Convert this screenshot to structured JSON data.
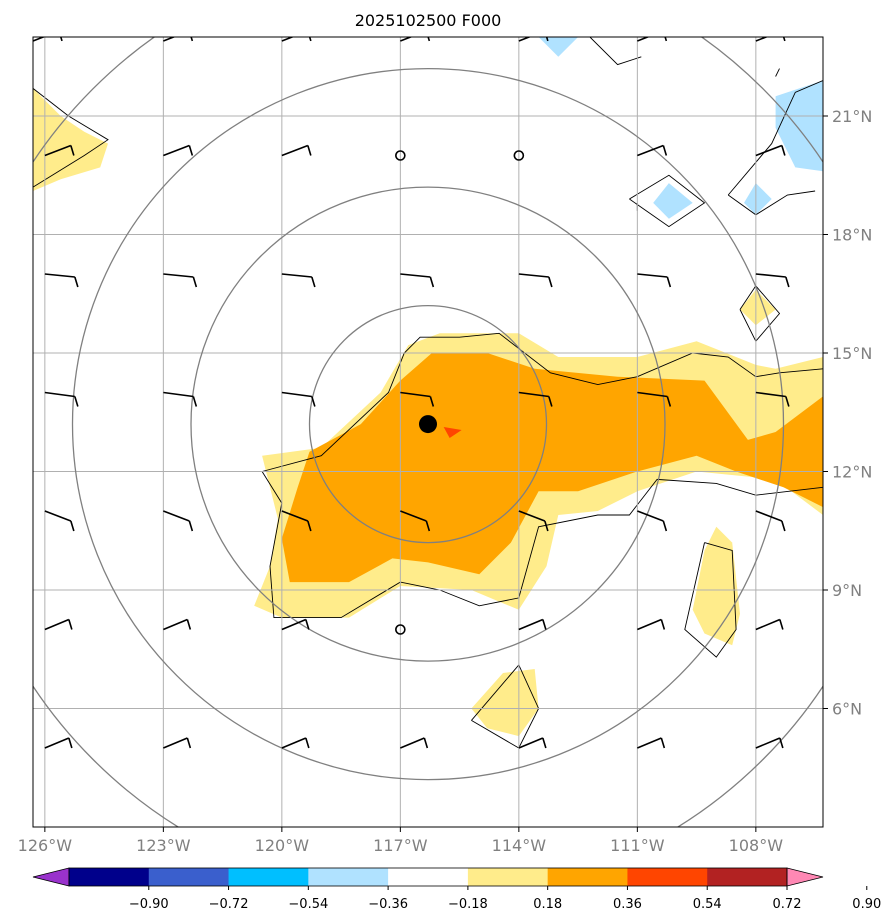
{
  "chart_data": {
    "type": "heatmap",
    "title": "2025102500 F000",
    "map": {
      "lon_range": [
        -126.3,
        -106.3
      ],
      "lat_range": [
        3,
        23
      ],
      "lon_ticks": [
        -126,
        -123,
        -120,
        -117,
        -114,
        -111,
        -108
      ],
      "lon_tick_labels": [
        "126°W",
        "123°W",
        "120°W",
        "117°W",
        "114°W",
        "111°W",
        "108°W"
      ],
      "lat_ticks": [
        6,
        9,
        12,
        15,
        18,
        21
      ],
      "lat_tick_labels": [
        "6°N",
        "9°N",
        "12°N",
        "15°N",
        "18°N",
        "21°N"
      ],
      "grid": true,
      "center_marker": {
        "lon": -116.3,
        "lat": 13.2
      },
      "motion_marker": {
        "lon": -115.6,
        "lat": 13.0,
        "color": "#ff4500"
      },
      "range_rings_deg": [
        3,
        6,
        9,
        12
      ]
    },
    "colorbar": {
      "levels": [
        -0.9,
        -0.72,
        -0.54,
        -0.36,
        -0.18,
        0.18,
        0.36,
        0.54,
        0.72,
        0.9
      ],
      "labels": [
        "−0.90",
        "−0.72",
        "−0.54",
        "−0.36",
        "−0.18",
        "0.18",
        "0.36",
        "0.54",
        "0.72",
        "0.90"
      ],
      "colors": [
        "#9932cc",
        "#00008b",
        "#3a5fcd",
        "#00bfff",
        "#b0e2ff",
        "#ffffff",
        "#ffec8b",
        "#ffa500",
        "#ff4500",
        "#b22222",
        "#ff88b4"
      ],
      "extend": "both"
    },
    "filled_regions": [
      {
        "level": "0.18-0.36",
        "color": "#ffec8b",
        "points": [
          [
            -120.5,
            12.4
          ],
          [
            -119,
            12.6
          ],
          [
            -117.5,
            14.0
          ],
          [
            -116.8,
            15.2
          ],
          [
            -116,
            15.5
          ],
          [
            -114,
            15.5
          ],
          [
            -113,
            14.9
          ],
          [
            -111,
            14.9
          ],
          [
            -109.5,
            15.3
          ],
          [
            -108,
            14.7
          ],
          [
            -107.5,
            14.6
          ],
          [
            -106.3,
            14.9
          ],
          [
            -106.3,
            10.9
          ],
          [
            -107.5,
            11.8
          ],
          [
            -109.5,
            12.0
          ],
          [
            -111,
            11.5
          ],
          [
            -112,
            11.0
          ],
          [
            -113,
            10.9
          ],
          [
            -113.3,
            9.6
          ],
          [
            -114.0,
            8.5
          ],
          [
            -115.2,
            9.0
          ],
          [
            -117,
            9.1
          ],
          [
            -118.3,
            8.3
          ],
          [
            -120,
            8.3
          ],
          [
            -120.7,
            8.6
          ],
          [
            -120.3,
            9.6
          ],
          [
            -120.1,
            10.8
          ],
          [
            -120.5,
            12.4
          ]
        ]
      },
      {
        "level": "0.36-0.54",
        "color": "#ffa500",
        "points": [
          [
            -119.3,
            12.5
          ],
          [
            -118,
            13.2
          ],
          [
            -117,
            14.3
          ],
          [
            -116.2,
            15.0
          ],
          [
            -114.8,
            15.0
          ],
          [
            -113.6,
            14.6
          ],
          [
            -111.5,
            14.4
          ],
          [
            -109.3,
            14.3
          ],
          [
            -108.2,
            12.8
          ],
          [
            -107.5,
            13.0
          ],
          [
            -106.3,
            13.9
          ],
          [
            -106.3,
            11.1
          ],
          [
            -107.3,
            11.6
          ],
          [
            -108.5,
            12.0
          ],
          [
            -109.5,
            12.4
          ],
          [
            -111,
            12.0
          ],
          [
            -112.5,
            11.5
          ],
          [
            -113.5,
            11.5
          ],
          [
            -114.2,
            10.2
          ],
          [
            -115,
            9.4
          ],
          [
            -116.3,
            9.7
          ],
          [
            -117.2,
            9.8
          ],
          [
            -118.3,
            9.2
          ],
          [
            -119.8,
            9.2
          ],
          [
            -120.0,
            10.3
          ],
          [
            -119.6,
            11.6
          ],
          [
            -119.3,
            12.5
          ]
        ]
      },
      {
        "level": "0.18-0.36",
        "color": "#ffec8b",
        "points": [
          [
            -126.3,
            21.7
          ],
          [
            -125.6,
            21.0
          ],
          [
            -125.0,
            20.6
          ],
          [
            -124.4,
            20.3
          ],
          [
            -124.6,
            19.7
          ],
          [
            -125.6,
            19.4
          ],
          [
            -126.3,
            19.1
          ]
        ]
      },
      {
        "level": "0.18-0.36",
        "color": "#ffec8b",
        "points": [
          [
            -108.4,
            16.1
          ],
          [
            -108.0,
            16.6
          ],
          [
            -107.5,
            16.1
          ],
          [
            -108.0,
            15.7
          ]
        ]
      },
      {
        "level": "0.18-0.36",
        "color": "#ffec8b",
        "points": [
          [
            -109.3,
            10.0
          ],
          [
            -109.0,
            10.6
          ],
          [
            -108.6,
            10.2
          ],
          [
            -108.4,
            8.4
          ],
          [
            -108.6,
            7.6
          ],
          [
            -109.3,
            7.9
          ],
          [
            -109.6,
            8.5
          ]
        ]
      },
      {
        "level": "0.18-0.36",
        "color": "#ffec8b",
        "points": [
          [
            -115.2,
            6.0
          ],
          [
            -114.4,
            6.9
          ],
          [
            -113.6,
            7.0
          ],
          [
            -113.5,
            6.0
          ],
          [
            -114.0,
            5.3
          ],
          [
            -114.8,
            5.5
          ]
        ]
      },
      {
        "level": "-0.36--0.18",
        "color": "#b0e2ff",
        "points": [
          [
            -113.5,
            23.0
          ],
          [
            -112.5,
            23.0
          ],
          [
            -113.0,
            22.5
          ]
        ]
      },
      {
        "level": "-0.36--0.18",
        "color": "#b0e2ff",
        "points": [
          [
            -107.5,
            21.5
          ],
          [
            -106.3,
            21.9
          ],
          [
            -106.3,
            19.6
          ],
          [
            -107.0,
            19.7
          ],
          [
            -107.5,
            20.7
          ]
        ]
      },
      {
        "level": "-0.36--0.18",
        "color": "#b0e2ff",
        "points": [
          [
            -110.6,
            18.8
          ],
          [
            -110.2,
            19.3
          ],
          [
            -109.6,
            18.8
          ],
          [
            -110.2,
            18.4
          ]
        ]
      },
      {
        "level": "-0.36--0.18",
        "color": "#b0e2ff",
        "points": [
          [
            -108.3,
            18.8
          ],
          [
            -108.0,
            19.3
          ],
          [
            -107.6,
            18.9
          ],
          [
            -108.0,
            18.5
          ]
        ]
      }
    ],
    "contours": [
      [
        [
          -120.5,
          12.0
        ],
        [
          -119.0,
          12.4
        ],
        [
          -117.3,
          14.0
        ],
        [
          -116.9,
          15.0
        ],
        [
          -116.5,
          15.4
        ],
        [
          -115.5,
          15.4
        ],
        [
          -114.5,
          15.5
        ],
        [
          -113.2,
          14.5
        ],
        [
          -112,
          14.2
        ],
        [
          -111,
          14.4
        ],
        [
          -109.6,
          15.0
        ],
        [
          -108.7,
          14.9
        ],
        [
          -108.0,
          14.4
        ],
        [
          -107.4,
          14.5
        ],
        [
          -106.3,
          14.6
        ]
      ],
      [
        [
          -120.5,
          12.0
        ],
        [
          -120.0,
          11.2
        ],
        [
          -120.3,
          9.6
        ],
        [
          -120.2,
          8.3
        ],
        [
          -118.5,
          8.3
        ],
        [
          -117.0,
          9.2
        ],
        [
          -116.0,
          9.0
        ],
        [
          -115.0,
          8.6
        ],
        [
          -114.0,
          8.8
        ],
        [
          -113.5,
          10.6
        ],
        [
          -112.0,
          10.9
        ],
        [
          -111.2,
          10.9
        ],
        [
          -110.5,
          11.8
        ],
        [
          -109.0,
          11.7
        ],
        [
          -108.0,
          11.4
        ],
        [
          -106.3,
          11.6
        ]
      ],
      [
        [
          -126.3,
          21.7
        ],
        [
          -125.4,
          21.0
        ],
        [
          -124.4,
          20.4
        ],
        [
          -125.0,
          20.0
        ],
        [
          -126.3,
          19.2
        ]
      ],
      [
        [
          -108.4,
          16.1
        ],
        [
          -108.0,
          16.7
        ],
        [
          -107.4,
          16.0
        ],
        [
          -108.0,
          15.3
        ],
        [
          -108.4,
          16.1
        ]
      ],
      [
        [
          -109.3,
          10.2
        ],
        [
          -108.6,
          10.0
        ],
        [
          -108.5,
          8.0
        ],
        [
          -109.0,
          7.3
        ],
        [
          -109.8,
          8.0
        ],
        [
          -109.3,
          10.2
        ]
      ],
      [
        [
          -115.2,
          5.7
        ],
        [
          -114.0,
          7.1
        ],
        [
          -113.5,
          6.0
        ],
        [
          -114.0,
          5.0
        ],
        [
          -115.2,
          5.7
        ]
      ],
      [
        [
          -111.2,
          18.9
        ],
        [
          -110.2,
          19.5
        ],
        [
          -109.3,
          18.8
        ],
        [
          -110.2,
          18.2
        ],
        [
          -111.2,
          18.9
        ]
      ],
      [
        [
          -108.7,
          19.0
        ],
        [
          -107.6,
          20.3
        ],
        [
          -107.0,
          21.6
        ],
        [
          -106.3,
          21.9
        ]
      ],
      [
        [
          -108.7,
          19.0
        ],
        [
          -108.0,
          18.5
        ],
        [
          -107.2,
          19.0
        ],
        [
          -106.5,
          19.1
        ]
      ],
      [
        [
          -112.2,
          23.0
        ],
        [
          -111.5,
          22.3
        ],
        [
          -110.9,
          22.5
        ]
      ],
      [
        [
          -111.0,
          18.8
        ],
        [
          -111.0,
          18.6
        ]
      ],
      [
        [
          -107.4,
          22.2
        ],
        [
          -107.5,
          22.0
        ]
      ]
    ],
    "wind_barbs": [
      {
        "lon": -126.3,
        "lat": 22.9
      },
      {
        "lon": -123,
        "lat": 22.9
      },
      {
        "lon": -120,
        "lat": 22.9
      },
      {
        "lon": -117,
        "lat": 22.9
      },
      {
        "lon": -114,
        "lat": 22.9
      },
      {
        "lon": -111,
        "lat": 22.9
      },
      {
        "lon": -108,
        "lat": 22.9
      },
      {
        "lon": -126,
        "lat": 20
      },
      {
        "lon": -123,
        "lat": 20
      },
      {
        "lon": -120,
        "lat": 20
      },
      {
        "lon": -111,
        "lat": 20
      },
      {
        "lon": -108,
        "lat": 20
      },
      {
        "lon": -126,
        "lat": 17
      },
      {
        "lon": -123,
        "lat": 17
      },
      {
        "lon": -120,
        "lat": 17
      },
      {
        "lon": -117,
        "lat": 17
      },
      {
        "lon": -114,
        "lat": 17
      },
      {
        "lon": -111,
        "lat": 17
      },
      {
        "lon": -108,
        "lat": 17
      },
      {
        "lon": -126,
        "lat": 14
      },
      {
        "lon": -123,
        "lat": 14
      },
      {
        "lon": -120,
        "lat": 14
      },
      {
        "lon": -117,
        "lat": 14
      },
      {
        "lon": -114,
        "lat": 14
      },
      {
        "lon": -111,
        "lat": 14
      },
      {
        "lon": -108,
        "lat": 14
      },
      {
        "lon": -126,
        "lat": 11
      },
      {
        "lon": -123,
        "lat": 11
      },
      {
        "lon": -120,
        "lat": 11
      },
      {
        "lon": -117,
        "lat": 11
      },
      {
        "lon": -114,
        "lat": 11
      },
      {
        "lon": -111,
        "lat": 11
      },
      {
        "lon": -108,
        "lat": 11
      },
      {
        "lon": -126,
        "lat": 8
      },
      {
        "lon": -123,
        "lat": 8
      },
      {
        "lon": -120,
        "lat": 8
      },
      {
        "lon": -114,
        "lat": 8
      },
      {
        "lon": -111,
        "lat": 8
      },
      {
        "lon": -108,
        "lat": 8
      },
      {
        "lon": -126,
        "lat": 5
      },
      {
        "lon": -123,
        "lat": 5
      },
      {
        "lon": -120,
        "lat": 5
      },
      {
        "lon": -117,
        "lat": 5
      },
      {
        "lon": -114,
        "lat": 5
      },
      {
        "lon": -111,
        "lat": 5
      },
      {
        "lon": -108,
        "lat": 5
      }
    ],
    "calm_markers": [
      {
        "lon": -117,
        "lat": 20
      },
      {
        "lon": -114,
        "lat": 20
      },
      {
        "lon": -117,
        "lat": 8
      }
    ]
  }
}
